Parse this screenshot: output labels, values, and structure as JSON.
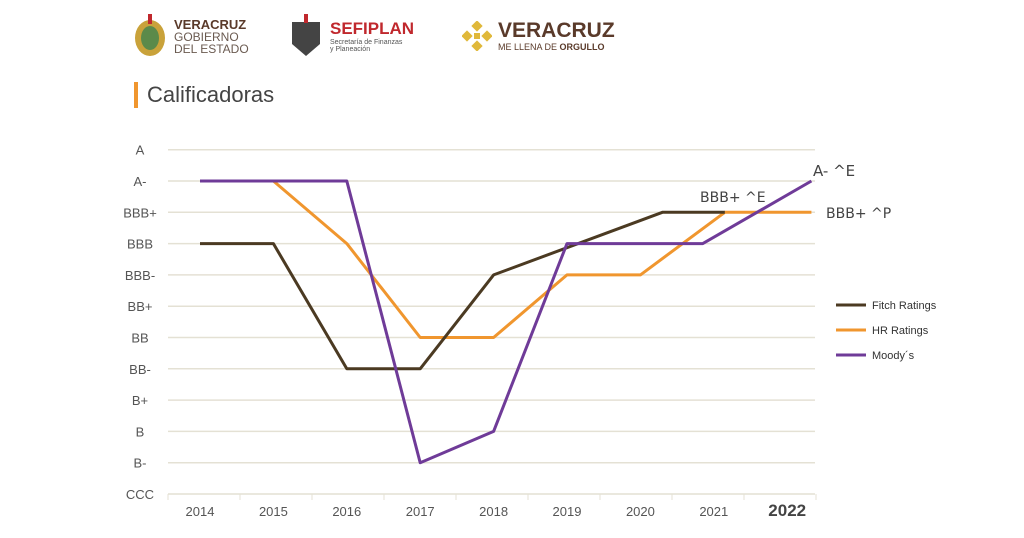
{
  "logos": {
    "gobierno": {
      "line1": "VERACRUZ",
      "line2": "GOBIERNO",
      "line3": "DEL ESTADO"
    },
    "sefiplan": {
      "name": "SEFIPLAN",
      "sub1": "Secretaría de Finanzas",
      "sub2": "y Planeación"
    },
    "veracruz": {
      "name": "VERACRUZ",
      "tag_a": "ME LLENA DE ",
      "tag_b": "ORGULLO"
    }
  },
  "title": "Calificadoras",
  "chart_data": {
    "type": "line",
    "title": "",
    "y_categories": [
      "CCC",
      "B-",
      "B",
      "B+",
      "BB-",
      "BB",
      "BB+",
      "BBB-",
      "BBB",
      "BBB+",
      "A-",
      "A"
    ],
    "x_ticks": [
      "2014",
      "2015",
      "2016",
      "2017",
      "2018",
      "2019",
      "2020",
      "2021",
      "2022"
    ],
    "grid": true,
    "legend_position": "right",
    "colors": {
      "Fitch Ratings": "#4b3a22",
      "HR Ratings": "#f0962e",
      "Moody´s": "#6f3b98",
      "grid": "#e4e1d4"
    },
    "series": [
      {
        "name": "Fitch Ratings",
        "points": [
          [
            2014,
            "BBB"
          ],
          [
            2015,
            "BBB"
          ],
          [
            2016,
            "BB-"
          ],
          [
            2017,
            "BB-"
          ],
          [
            2018,
            "BBB-"
          ],
          [
            2020.3,
            "BBB+"
          ],
          [
            2021.15,
            "BBB+"
          ]
        ]
      },
      {
        "name": "HR Ratings",
        "points": [
          [
            2014,
            "A-"
          ],
          [
            2015,
            "A-"
          ],
          [
            2016,
            "BBB"
          ],
          [
            2017,
            "BB"
          ],
          [
            2018,
            "BB"
          ],
          [
            2019,
            "BBB-"
          ],
          [
            2020,
            "BBB-"
          ],
          [
            2021.15,
            "BBB+"
          ],
          [
            2022.33,
            "BBB+"
          ]
        ]
      },
      {
        "name": "Moody´s",
        "points": [
          [
            2014,
            "A-"
          ],
          [
            2016,
            "A-"
          ],
          [
            2017,
            "B-"
          ],
          [
            2018,
            "B"
          ],
          [
            2019,
            "BBB"
          ],
          [
            2020.85,
            "BBB"
          ],
          [
            2022.33,
            "A-"
          ]
        ]
      }
    ],
    "annotations": [
      {
        "text": "A- ^E",
        "x": 2022.33,
        "y": "A-"
      },
      {
        "text": "BBB+ ^E",
        "x": 2021.15,
        "y": "BBB+"
      },
      {
        "text": "BBB+ ^P",
        "x": 2022.33,
        "y": "BBB+"
      }
    ]
  }
}
